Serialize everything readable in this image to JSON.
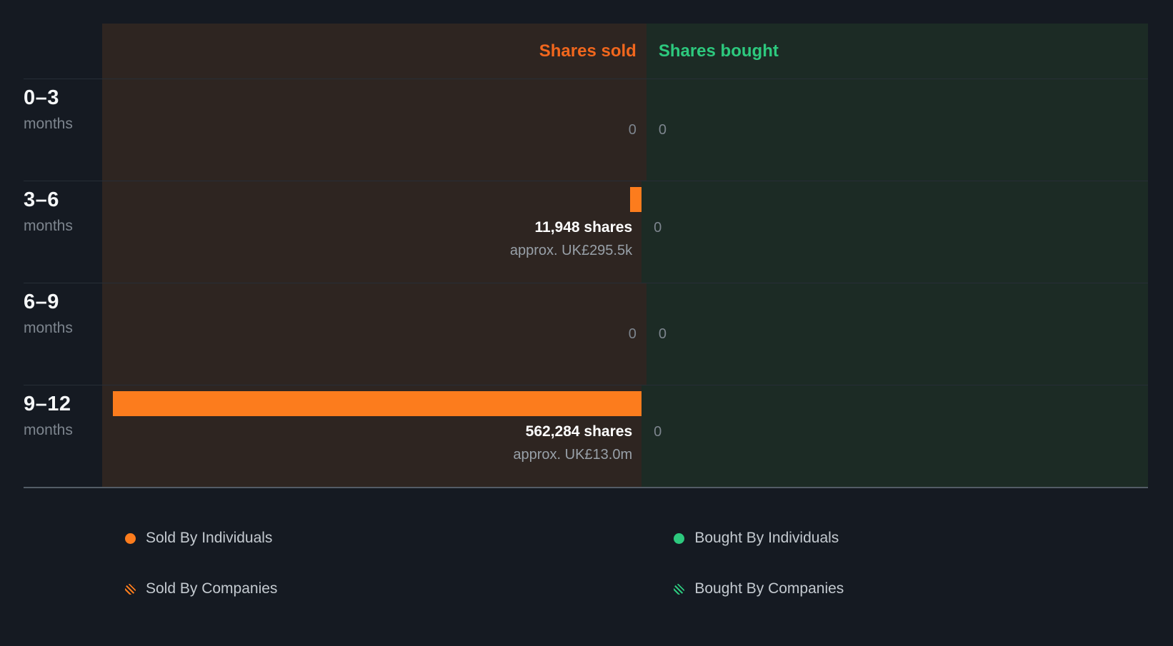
{
  "colors": {
    "background": "#151A22",
    "sold_panel_bg": "#2E2521",
    "bought_panel_bg": "#1C2B25",
    "sold_accent": "#FC7C1D",
    "sold_header_text": "#F2671D",
    "bought_accent": "#2DC97E",
    "muted_text": "#7D858E",
    "approx_text": "#98A0A8",
    "value_text": "#FFFFFF",
    "legend_text": "#C4CAD0",
    "row_line": "#272E37",
    "bottom_line": "#535C66"
  },
  "header": {
    "sold_label": "Shares sold",
    "bought_label": "Shares bought"
  },
  "rows": [
    {
      "period": "0–3",
      "unit": "months",
      "sold_display": "0",
      "bought_display": "0"
    },
    {
      "period": "3–6",
      "unit": "months",
      "sold_shares": "11,948 shares",
      "sold_approx": "approx. UK£295.5k",
      "bought_display": "0"
    },
    {
      "period": "6–9",
      "unit": "months",
      "sold_display": "0",
      "bought_display": "0"
    },
    {
      "period": "9–12",
      "unit": "months",
      "sold_shares": "562,284 shares",
      "sold_approx": "approx. UK£13.0m",
      "bought_display": "0"
    }
  ],
  "legend": {
    "sold_individuals": "Sold By Individuals",
    "sold_companies": "Sold By Companies",
    "bought_individuals": "Bought By Individuals",
    "bought_companies": "Bought By Companies"
  },
  "chart_data": {
    "type": "bar",
    "orientation": "horizontal",
    "title": "",
    "categories": [
      "0–3 months",
      "3–6 months",
      "6–9 months",
      "9–12 months"
    ],
    "series": [
      {
        "name": "Shares sold",
        "values": [
          0,
          11948,
          0,
          562284
        ],
        "value_labels": [
          "0",
          "11,948 shares",
          "0",
          "562,284 shares"
        ],
        "approx_labels": [
          "",
          "approx. UK£295.5k",
          "",
          "approx. UK£13.0m"
        ],
        "color": "#FC7C1D"
      },
      {
        "name": "Shares bought",
        "values": [
          0,
          0,
          0,
          0
        ],
        "value_labels": [
          "0",
          "0",
          "0",
          "0"
        ],
        "approx_labels": [
          "",
          "",
          "",
          ""
        ],
        "color": "#2DC97E"
      }
    ],
    "legend_position": "bottom",
    "legend_entries": [
      "Sold By Individuals",
      "Sold By Companies",
      "Bought By Individuals",
      "Bought By Companies"
    ]
  }
}
